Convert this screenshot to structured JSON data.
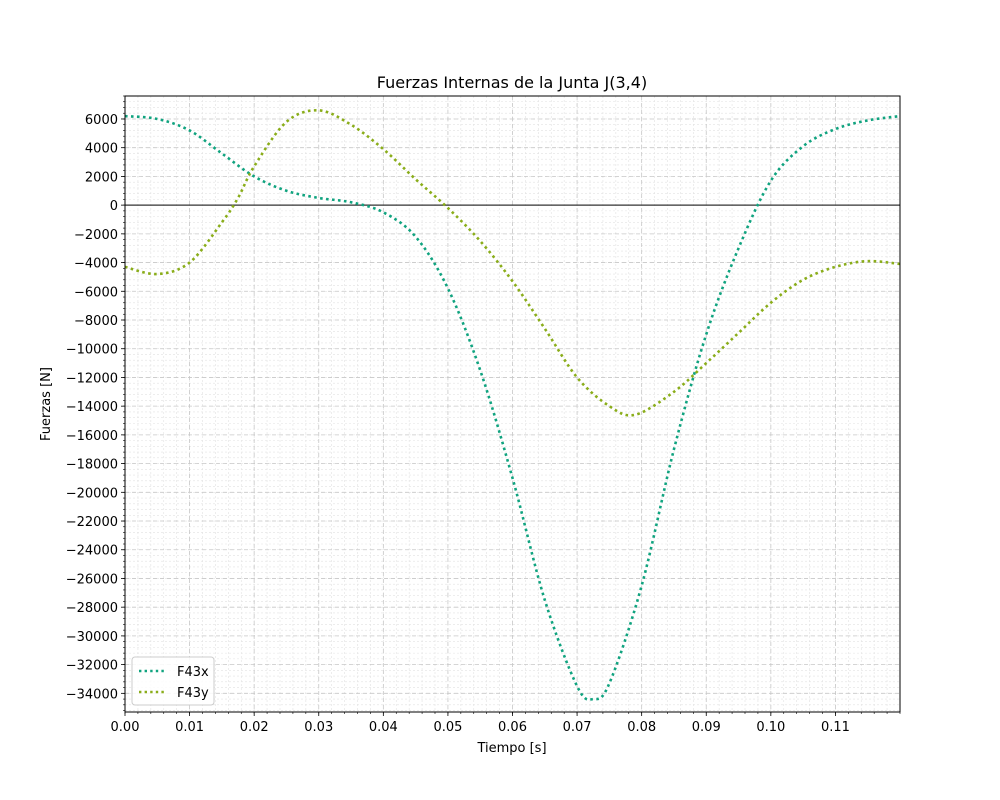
{
  "chart_data": {
    "type": "line",
    "title": "Fuerzas Internas de la Junta J(3,4)",
    "xlabel": "Tiempo [s]",
    "ylabel": "Fuerzas [N]",
    "xlim": [
      0.0,
      0.12
    ],
    "ylim": [
      -35300,
      7600
    ],
    "x_ticks": [
      0.0,
      0.01,
      0.02,
      0.03,
      0.04,
      0.05,
      0.06,
      0.07,
      0.08,
      0.09,
      0.1,
      0.11
    ],
    "x_tick_labels": [
      "0.00",
      "0.01",
      "0.02",
      "0.03",
      "0.04",
      "0.05",
      "0.06",
      "0.07",
      "0.08",
      "0.09",
      "0.10",
      "0.11"
    ],
    "y_ticks": [
      6000,
      4000,
      2000,
      0,
      -2000,
      -4000,
      -6000,
      -8000,
      -10000,
      -12000,
      -14000,
      -16000,
      -18000,
      -20000,
      -22000,
      -24000,
      -26000,
      -28000,
      -30000,
      -32000,
      -34000
    ],
    "y_tick_labels": [
      "6000",
      "4000",
      "2000",
      "0",
      "−2000",
      "−4000",
      "−6000",
      "−8000",
      "−10000",
      "−12000",
      "−14000",
      "−16000",
      "−18000",
      "−20000",
      "−22000",
      "−24000",
      "−26000",
      "−28000",
      "−30000",
      "−32000",
      "−34000"
    ],
    "grid": true,
    "zero_line": true,
    "legend_position": "lower-left",
    "series": [
      {
        "name": "F43x",
        "color": "#10a37f",
        "x": [
          0.0,
          0.005,
          0.01,
          0.015,
          0.02,
          0.025,
          0.03,
          0.035,
          0.04,
          0.045,
          0.05,
          0.055,
          0.06,
          0.065,
          0.07,
          0.0725,
          0.075,
          0.08,
          0.085,
          0.09,
          0.095,
          0.1,
          0.105,
          0.11,
          0.115,
          0.12
        ],
        "y": [
          6200,
          6000,
          5200,
          3600,
          2000,
          1000,
          500,
          200,
          -500,
          -2200,
          -5800,
          -11500,
          -19000,
          -27500,
          -33500,
          -34400,
          -33300,
          -26500,
          -17000,
          -9000,
          -3000,
          1700,
          4100,
          5300,
          5900,
          6200
        ]
      },
      {
        "name": "F43y",
        "color": "#8aad1a",
        "x": [
          0.0,
          0.005,
          0.01,
          0.015,
          0.0175,
          0.02,
          0.025,
          0.03,
          0.035,
          0.04,
          0.045,
          0.05,
          0.055,
          0.06,
          0.065,
          0.07,
          0.075,
          0.079,
          0.085,
          0.09,
          0.095,
          0.1,
          0.105,
          0.11,
          0.115,
          0.12
        ],
        "y": [
          -4300,
          -4800,
          -4000,
          -1200,
          500,
          2700,
          5800,
          6600,
          5600,
          3900,
          1800,
          -200,
          -2500,
          -5300,
          -8600,
          -12000,
          -14000,
          -14600,
          -13000,
          -11000,
          -8900,
          -6800,
          -5200,
          -4300,
          -3900,
          -4100
        ]
      }
    ]
  }
}
